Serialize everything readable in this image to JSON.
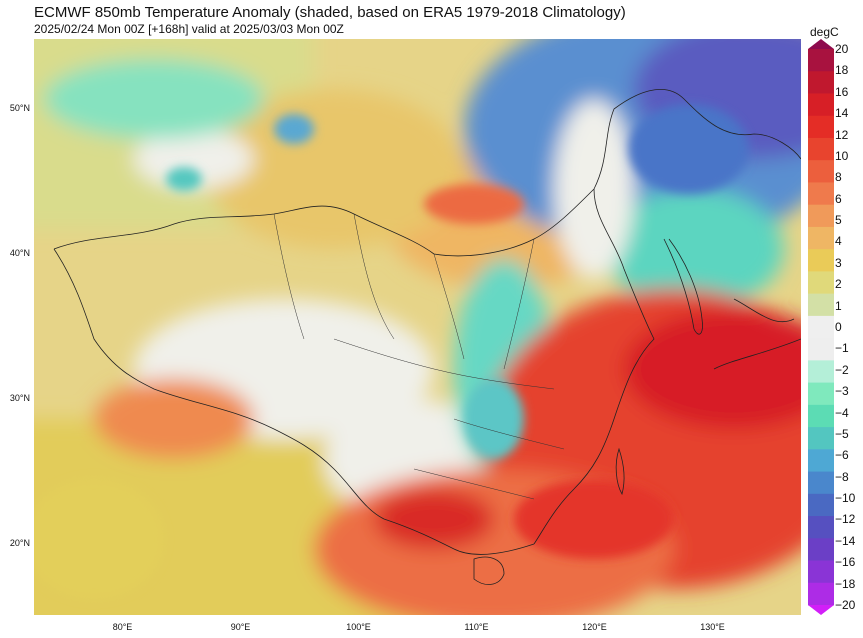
{
  "header": {
    "title": "ECMWF 850mb Temperature Anomaly (shaded, based on ERA5 1979-2018 Climatology)",
    "subtitle": "2025/02/24 Mon 00Z [+168h] valid at 2025/03/03 Mon 00Z"
  },
  "map": {
    "lat_labels": [
      {
        "text": "50°N",
        "lat": 50
      },
      {
        "text": "40°N",
        "lat": 40
      },
      {
        "text": "30°N",
        "lat": 30
      },
      {
        "text": "20°N",
        "lat": 20
      }
    ],
    "lon_labels": [
      {
        "text": "80°E",
        "lon": 80
      },
      {
        "text": "90°E",
        "lon": 90
      },
      {
        "text": "100°E",
        "lon": 100
      },
      {
        "text": "110°E",
        "lon": 110
      },
      {
        "text": "120°E",
        "lon": 120
      },
      {
        "text": "130°E",
        "lon": 130
      }
    ],
    "extent": {
      "lon_min": 72.5,
      "lon_max": 137.5,
      "lat_min": 15,
      "lat_max": 54.8
    }
  },
  "colorbar": {
    "unit": "degC",
    "ticks": [
      "20",
      "18",
      "16",
      "14",
      "12",
      "10",
      "8",
      "6",
      "5",
      "4",
      "3",
      "2",
      "1",
      "0",
      "−1",
      "−2",
      "−3",
      "−4",
      "−5",
      "−6",
      "−8",
      "−10",
      "−12",
      "−14",
      "−16",
      "−18",
      "−20"
    ],
    "colors": [
      "#8e0a4d",
      "#a8123f",
      "#c0182e",
      "#d71f26",
      "#e42d26",
      "#e8442e",
      "#ec5f3d",
      "#ef7a4c",
      "#f09a5a",
      "#efb664",
      "#eacb58",
      "#e0d97a",
      "#d3e0a6",
      "#efefef",
      "#eeeeee",
      "#b4efd8",
      "#7fe9bd",
      "#5cdcb4",
      "#53c6c0",
      "#4ea8d4",
      "#4a87cc",
      "#4a69c2",
      "#5650c0",
      "#6b3fc6",
      "#8a34d6",
      "#ad2ce6",
      "#d21ff8"
    ]
  }
}
